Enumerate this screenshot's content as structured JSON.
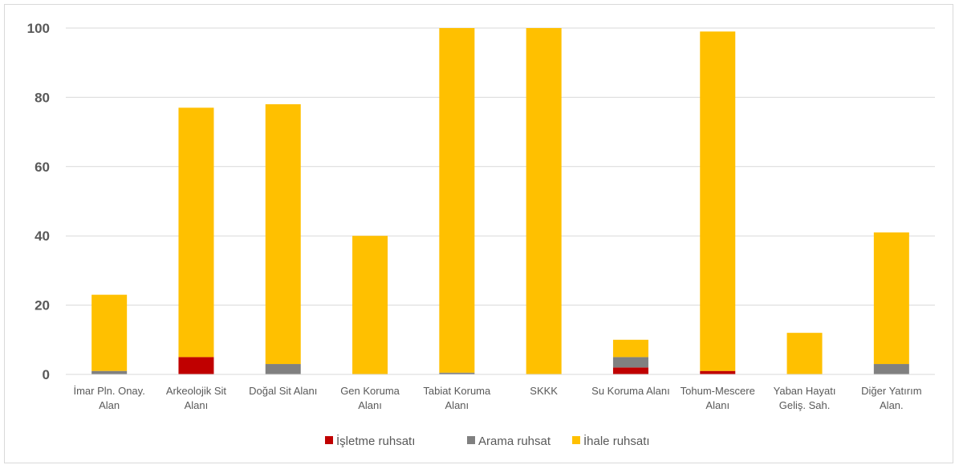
{
  "chart_data": {
    "type": "bar",
    "stacked": true,
    "categories": [
      [
        "İmar Pln. Onay.",
        "Alan"
      ],
      [
        "Arkeolojik Sit",
        "Alanı"
      ],
      [
        "Doğal Sit Alanı"
      ],
      [
        "Gen Koruma",
        "Alanı"
      ],
      [
        "Tabiat Koruma",
        "Alanı"
      ],
      [
        "SKKK"
      ],
      [
        "Su Koruma Alanı"
      ],
      [
        "Tohum-Mescere",
        "Alanı"
      ],
      [
        "Yaban Hayatı",
        "Geliş. Sah."
      ],
      [
        "Diğer Yatırım",
        "Alan."
      ]
    ],
    "series": [
      {
        "name": "İşletme ruhsatı",
        "color": "#c00000",
        "values": [
          0,
          5,
          0,
          0,
          0,
          0,
          2,
          1,
          0,
          0
        ]
      },
      {
        "name": "Arama ruhsat",
        "color": "#808080",
        "values": [
          1,
          0,
          3,
          0,
          0.5,
          0,
          3,
          0,
          0,
          3
        ]
      },
      {
        "name": "İhale ruhsatı",
        "color": "#ffc000",
        "values": [
          22,
          72,
          75,
          40,
          99.5,
          100,
          5,
          98,
          12,
          38
        ]
      }
    ],
    "ylim": [
      0,
      100
    ],
    "yticks": [
      0,
      20,
      40,
      60,
      80,
      100
    ],
    "grid": true,
    "legend": "bottom"
  }
}
